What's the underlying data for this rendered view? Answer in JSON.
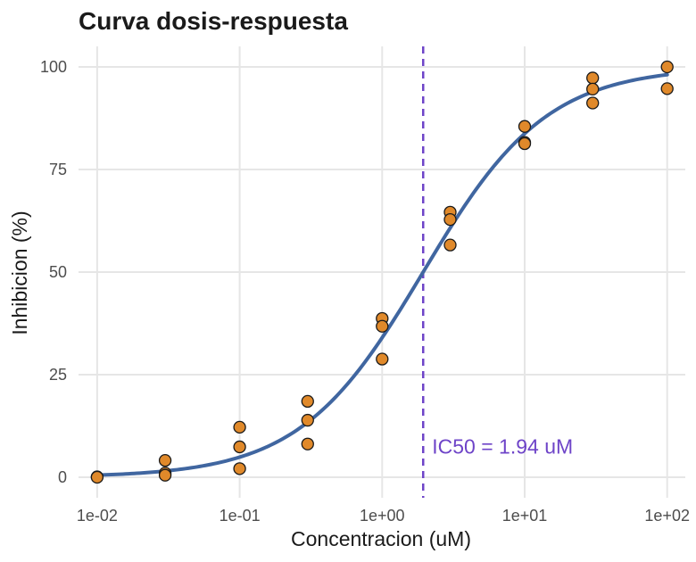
{
  "chart_data": {
    "type": "scatter",
    "title": "Curva dosis-respuesta",
    "xlabel": "Concentracion (uM)",
    "ylabel": "Inhibicion (%)",
    "x_scale": "log10",
    "xlim": [
      0.0074,
      134
    ],
    "ylim": [
      -5,
      105
    ],
    "x_ticks": [
      {
        "value": 0.01,
        "label": "1e-02"
      },
      {
        "value": 0.1,
        "label": "1e-01"
      },
      {
        "value": 1,
        "label": "1e+00"
      },
      {
        "value": 10,
        "label": "1e+01"
      },
      {
        "value": 100,
        "label": "1e+02"
      }
    ],
    "y_ticks": [
      {
        "value": 0,
        "label": "0"
      },
      {
        "value": 25,
        "label": "25"
      },
      {
        "value": 50,
        "label": "50"
      },
      {
        "value": 75,
        "label": "75"
      },
      {
        "value": 100,
        "label": "100"
      }
    ],
    "grid": true,
    "points": [
      {
        "x": 0.01,
        "y": 0.1
      },
      {
        "x": 0.01,
        "y": 0.0
      },
      {
        "x": 0.03,
        "y": 4.1
      },
      {
        "x": 0.03,
        "y": 1.0
      },
      {
        "x": 0.03,
        "y": 0.5
      },
      {
        "x": 0.1,
        "y": 12.2
      },
      {
        "x": 0.1,
        "y": 7.4
      },
      {
        "x": 0.1,
        "y": 2.1
      },
      {
        "x": 0.3,
        "y": 18.5
      },
      {
        "x": 0.3,
        "y": 13.9
      },
      {
        "x": 0.3,
        "y": 8.1
      },
      {
        "x": 1,
        "y": 38.7
      },
      {
        "x": 1,
        "y": 36.8
      },
      {
        "x": 1,
        "y": 28.8
      },
      {
        "x": 3,
        "y": 64.6
      },
      {
        "x": 3,
        "y": 62.8
      },
      {
        "x": 3,
        "y": 56.6
      },
      {
        "x": 10,
        "y": 85.5
      },
      {
        "x": 10,
        "y": 81.6
      },
      {
        "x": 10,
        "y": 81.3
      },
      {
        "x": 30,
        "y": 97.3
      },
      {
        "x": 30,
        "y": 94.6
      },
      {
        "x": 30,
        "y": 91.2
      },
      {
        "x": 100,
        "y": 100.0
      },
      {
        "x": 100,
        "y": 94.7
      }
    ],
    "fit_curve": {
      "model": "four-parameter logistic",
      "bottom": 0,
      "top": 100,
      "ic50": 1.94,
      "hill": 1.0,
      "x_range": [
        0.01,
        100
      ]
    },
    "reference_line": {
      "x": 1.94,
      "orientation": "vertical",
      "style": "dashed"
    },
    "annotation": {
      "text": "IC50 = 1.94 uM",
      "x": 1.94,
      "y": 7.5
    },
    "colors": {
      "points_fill": "#E0892A",
      "points_stroke": "#1a1a1a",
      "curve": "#4066A0",
      "ic50_line": "#6E44C8",
      "annotation": "#6E44C8",
      "grid": "#E6E6E6"
    }
  }
}
